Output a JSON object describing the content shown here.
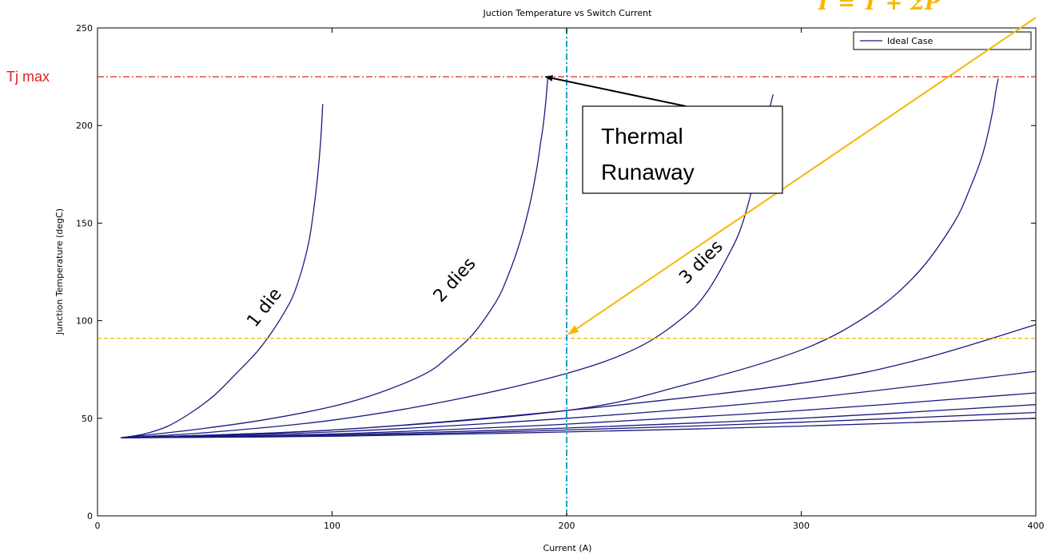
{
  "chart_data": {
    "type": "line",
    "title": "Juction Temperature vs Switch Current",
    "xlabel": "Current (A)",
    "ylabel": "Junction Temperature (degC)",
    "xlim": [
      0,
      400
    ],
    "ylim": [
      0,
      250
    ],
    "xticks": [
      0,
      100,
      200,
      300,
      400
    ],
    "yticks": [
      0,
      50,
      100,
      150,
      200,
      250
    ],
    "grid": false,
    "legend": {
      "position": "top-right",
      "entries": [
        "Ideal Case"
      ]
    },
    "series_color": "#1a1a80",
    "series": [
      {
        "x": [
          10,
          20,
          30,
          40,
          50,
          60,
          70,
          80,
          85,
          90,
          93,
          95,
          96
        ],
        "y": [
          40,
          42,
          46,
          53,
          62,
          74,
          87,
          105,
          118,
          140,
          165,
          190,
          211
        ]
      },
      {
        "x": [
          10,
          40,
          70,
          100,
          120,
          140,
          150,
          160,
          170,
          175,
          180,
          184,
          187,
          189,
          190,
          191,
          192
        ],
        "y": [
          40,
          44,
          49,
          56,
          63,
          73,
          82,
          93,
          110,
          123,
          140,
          158,
          176,
          192,
          200,
          211,
          225
        ]
      },
      {
        "x": [
          10,
          50,
          100,
          150,
          200,
          230,
          250,
          260,
          270,
          275,
          280,
          283,
          285,
          287,
          288
        ],
        "y": [
          40,
          43,
          49,
          59,
          73,
          86,
          102,
          115,
          136,
          150,
          172,
          188,
          200,
          211,
          216
        ]
      },
      {
        "x": [
          10,
          100,
          200,
          250,
          300,
          330,
          350,
          365,
          372,
          377,
          380,
          382,
          383,
          384
        ],
        "y": [
          40,
          44,
          54,
          67,
          85,
          104,
          125,
          150,
          168,
          184,
          198,
          210,
          218,
          224
        ]
      },
      {
        "x": [
          10,
          100,
          200,
          300,
          350,
          400
        ],
        "y": [
          40,
          44,
          54,
          68,
          80,
          98
        ]
      },
      {
        "x": [
          10,
          100,
          200,
          300,
          400
        ],
        "y": [
          40,
          43,
          50,
          60,
          74
        ]
      },
      {
        "x": [
          10,
          100,
          200,
          300,
          400
        ],
        "y": [
          40,
          42,
          47,
          54,
          63
        ]
      },
      {
        "x": [
          10,
          100,
          200,
          300,
          400
        ],
        "y": [
          40,
          41.5,
          45,
          50,
          57
        ]
      },
      {
        "x": [
          10,
          100,
          200,
          300,
          400
        ],
        "y": [
          40,
          41,
          44,
          48,
          53
        ]
      },
      {
        "x": [
          10,
          100,
          200,
          300,
          400
        ],
        "y": [
          40,
          40.8,
          43,
          46,
          50
        ]
      }
    ],
    "reference_lines": [
      {
        "orientation": "horizontal",
        "y": 225,
        "label": "Tj max",
        "color": "#e02020",
        "style": "dash-dot"
      },
      {
        "orientation": "horizontal",
        "y": 91,
        "label": "",
        "color": "#f5b800",
        "style": "dashed"
      },
      {
        "orientation": "vertical",
        "x": 200,
        "label": "",
        "color": "#1a9fcc",
        "style": "dash-dot"
      }
    ],
    "annotations": {
      "curve_labels": [
        {
          "text": "1 die",
          "x": 73,
          "y": 105,
          "rotation": -52
        },
        {
          "text": "2 dies",
          "x": 154,
          "y": 119,
          "rotation": -48
        },
        {
          "text": "3 dies",
          "x": 259,
          "y": 128,
          "rotation": -45
        }
      ],
      "callout": {
        "text_lines": [
          "Thermal",
          "Runaway"
        ],
        "arrow_to_x": 191,
        "arrow_to_y": 225
      },
      "formula_arrow": {
        "color": "#f5b800",
        "to_x": 200,
        "to_y": 93
      },
      "formula_partial": "T  = T  + ΣP"
    }
  }
}
